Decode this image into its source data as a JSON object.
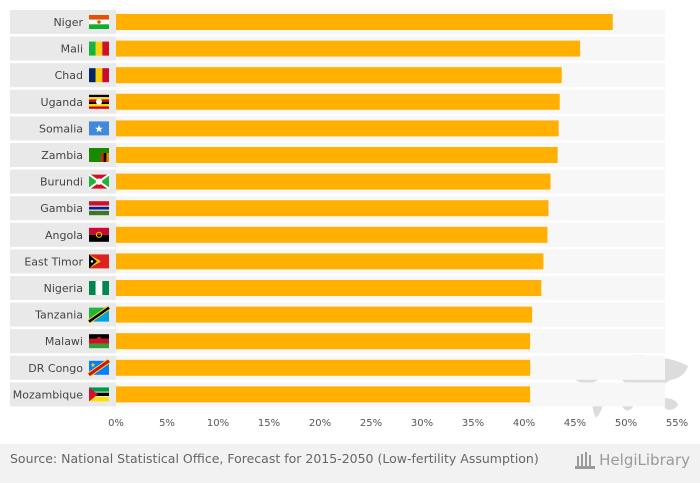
{
  "chart_data": {
    "type": "bar",
    "orientation": "horizontal",
    "categories": [
      "Niger",
      "Mali",
      "Chad",
      "Uganda",
      "Somalia",
      "Zambia",
      "Burundi",
      "Gambia",
      "Angola",
      "East Timor",
      "Nigeria",
      "Tanzania",
      "Malawi",
      "DR Congo",
      "Mozambique"
    ],
    "values": [
      48.7,
      45.5,
      43.7,
      43.5,
      43.4,
      43.3,
      42.6,
      42.4,
      42.3,
      41.9,
      41.7,
      40.8,
      40.6,
      40.6,
      40.6
    ],
    "xlim": [
      0,
      55
    ],
    "xticks": [
      0,
      5,
      10,
      15,
      20,
      25,
      30,
      35,
      40,
      45,
      50,
      55
    ],
    "xtick_labels": [
      "0%",
      "5%",
      "10%",
      "15%",
      "20%",
      "25%",
      "30%",
      "35%",
      "40%",
      "45%",
      "50%",
      "55%"
    ],
    "bar_color": "#ffb000",
    "label_bg_color": "#e9e9e9",
    "band_color": "#f7f7f7",
    "title": "",
    "xlabel": "",
    "ylabel": "",
    "flags": [
      "niger-flag",
      "mali-flag",
      "chad-flag",
      "uganda-flag",
      "somalia-flag",
      "zambia-flag",
      "burundi-flag",
      "gambia-flag",
      "angola-flag",
      "east-timor-flag",
      "nigeria-flag",
      "tanzania-flag",
      "malawi-flag",
      "dr-congo-flag",
      "mozambique-flag"
    ]
  },
  "footer": {
    "source": "Source: National Statistical Office, Forecast for 2015-2050 (Low-fertility Assumption)",
    "brand": "HelgiLibrary",
    "brand_icon": "library-columns-icon"
  }
}
